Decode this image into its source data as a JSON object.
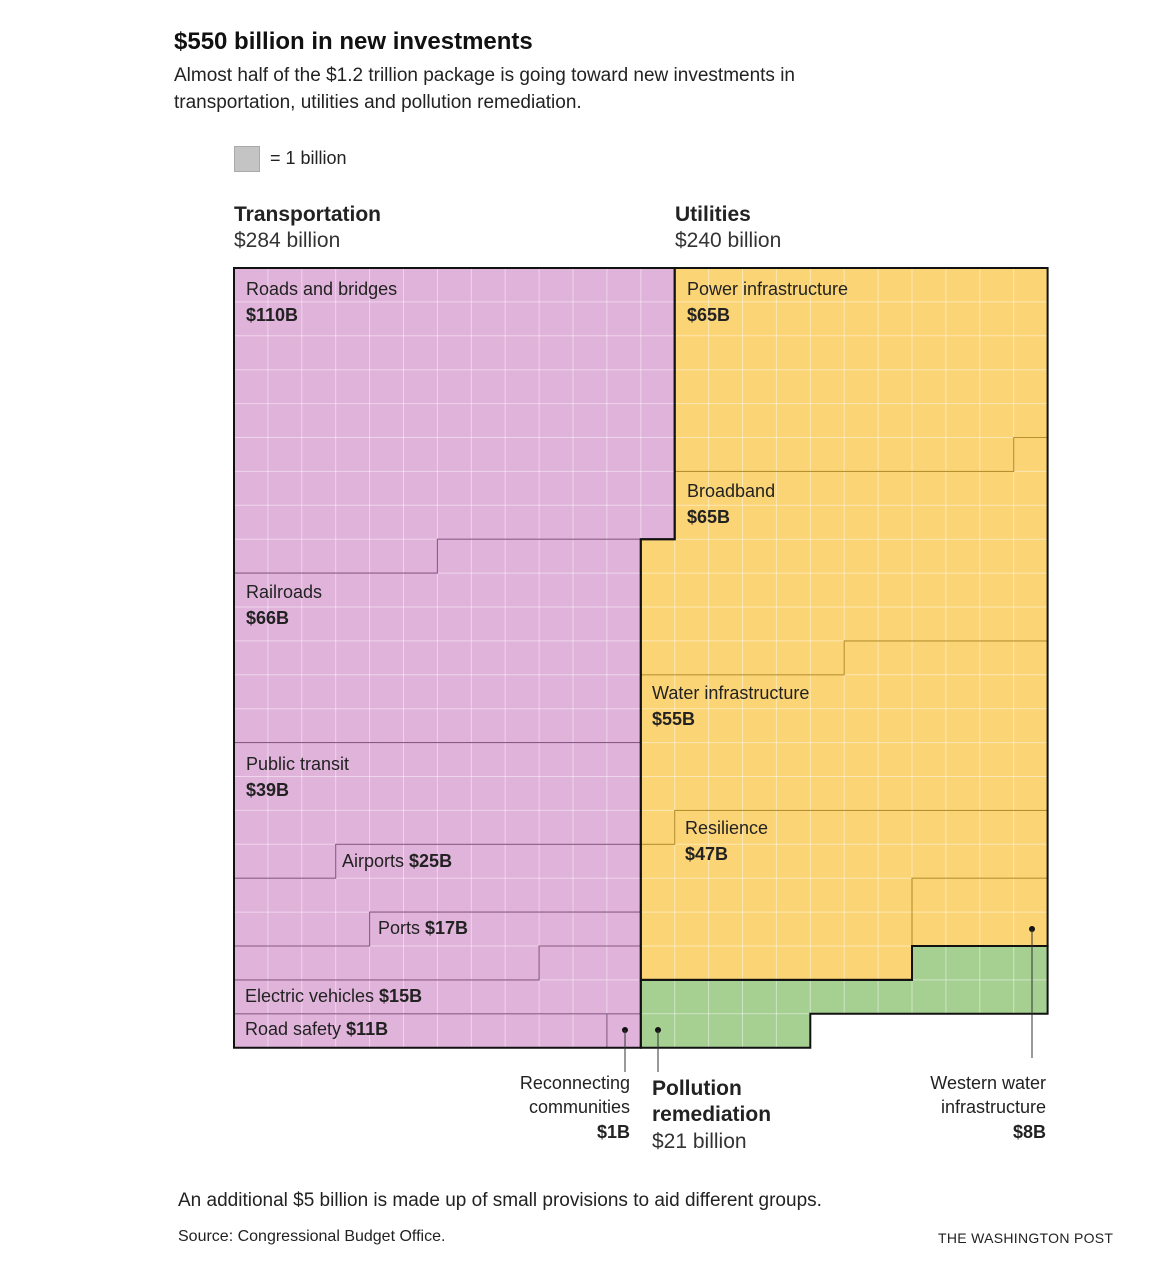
{
  "title": "$550 billion in new investments",
  "subtitle": "Almost half of the $1.2 trillion package is going toward new investments in transportation, utilities and pollution remediation.",
  "legend": {
    "label": "= 1 billion",
    "unit_value": 1
  },
  "groups": {
    "transportation": {
      "name": "Transportation",
      "amount": "$284 billion"
    },
    "utilities": {
      "name": "Utilities",
      "amount": "$240 billion"
    },
    "pollution": {
      "name_line1": "Pollution",
      "name_line2": "remediation",
      "amount": "$21 billion"
    }
  },
  "colors": {
    "transportation": "#e0b3da",
    "utilities": "#fbd475",
    "pollution": "#a6cf92",
    "legend_square": "#c4c4c4"
  },
  "chart_data": {
    "type": "waffle",
    "unit": "billion dollars",
    "groups": [
      {
        "group": "Transportation",
        "total": 284,
        "items": [
          {
            "label": "Roads and bridges",
            "value": 110,
            "value_label": "$110B"
          },
          {
            "label": "Railroads",
            "value": 66,
            "value_label": "$66B"
          },
          {
            "label": "Public transit",
            "value": 39,
            "value_label": "$39B"
          },
          {
            "label": "Airports",
            "value": 25,
            "value_label": "$25B"
          },
          {
            "label": "Ports",
            "value": 17,
            "value_label": "$17B"
          },
          {
            "label": "Electric vehicles",
            "value": 15,
            "value_label": "$15B"
          },
          {
            "label": "Road safety",
            "value": 11,
            "value_label": "$11B"
          },
          {
            "label": "Reconnecting communities",
            "value": 1,
            "value_label": "$1B"
          }
        ]
      },
      {
        "group": "Utilities",
        "total": 240,
        "items": [
          {
            "label": "Power infrastructure",
            "value": 65,
            "value_label": "$65B"
          },
          {
            "label": "Broadband",
            "value": 65,
            "value_label": "$65B"
          },
          {
            "label": "Water infrastructure",
            "value": 55,
            "value_label": "$55B"
          },
          {
            "label": "Resilience",
            "value": 47,
            "value_label": "$47B"
          },
          {
            "label": "Western water infrastructure",
            "value": 8,
            "value_label": "$8B"
          }
        ]
      },
      {
        "group": "Pollution remediation",
        "total": 21,
        "items": [
          {
            "label": "Pollution remediation",
            "value": 21,
            "value_label": "$21 billion"
          }
        ]
      }
    ]
  },
  "annotations": {
    "reconnecting": {
      "line1": "Reconnecting",
      "line2": "communities",
      "value": "$1B"
    },
    "western_water": {
      "line1": "Western water",
      "line2": "infrastructure",
      "value": "$8B"
    }
  },
  "note": "An additional $5 billion is made up of small provisions to aid different groups.",
  "source": "Source: Congressional Budget Office.",
  "credit": "THE WASHINGTON POST"
}
